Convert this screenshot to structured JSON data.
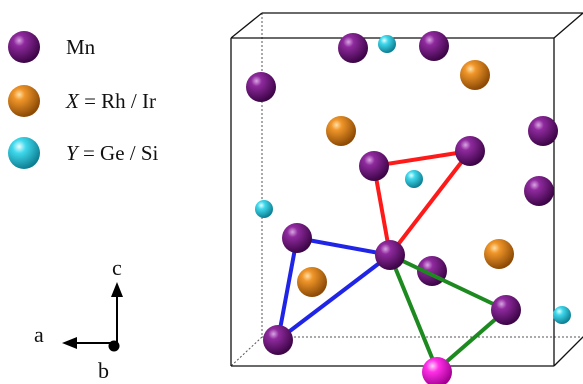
{
  "legend": {
    "mn": {
      "label": "Mn",
      "color": "#7a0f86"
    },
    "x": {
      "label_italic": "X",
      "label_rest": " = Rh / Ir",
      "color": "#e08a12"
    },
    "y": {
      "label_italic": "Y",
      "label_rest": " = Ge / Si",
      "color": "#35d0e6"
    }
  },
  "axes": {
    "a": "a",
    "b": "b",
    "c": "c"
  },
  "special_atom_color": "#ff2ee6",
  "bond_colors": {
    "red": "#ff1a1a",
    "blue": "#1f24e6",
    "green": "#1d8a20"
  }
}
